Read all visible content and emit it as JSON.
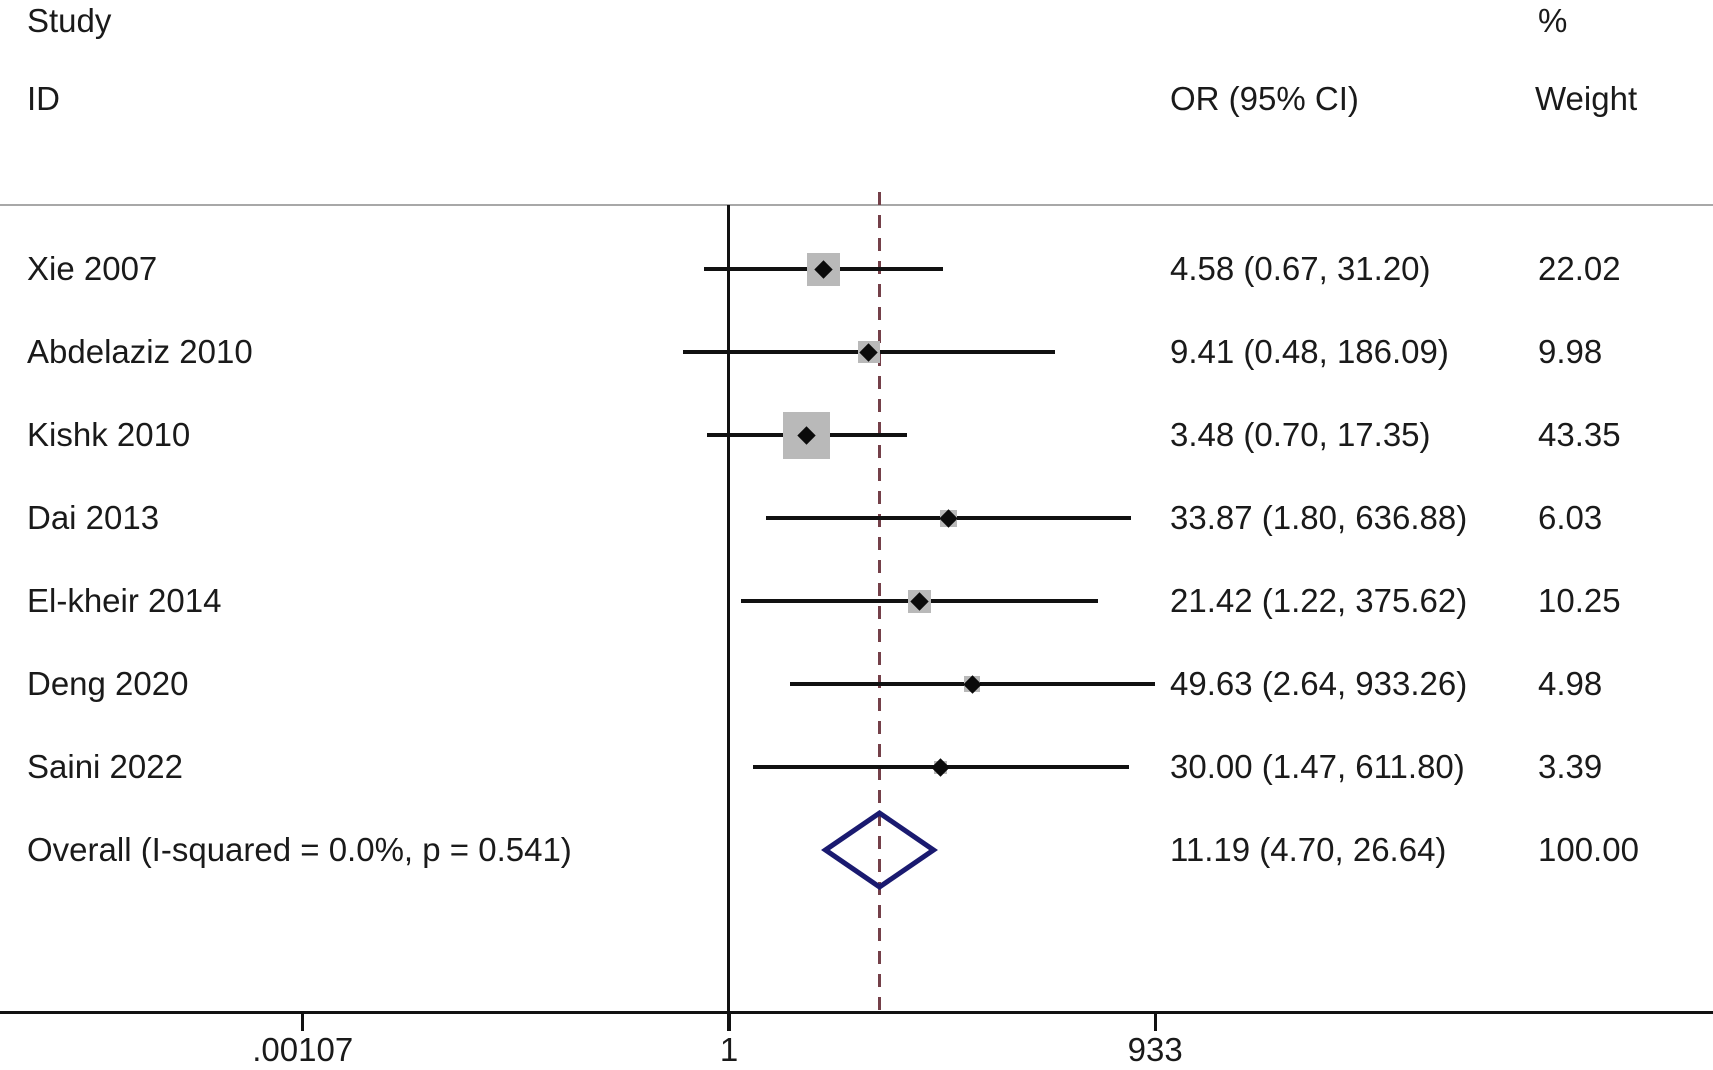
{
  "header": {
    "study_line1": "Study",
    "study_line2": "ID",
    "or_col": "OR (95% CI)",
    "weight_line1": "%",
    "weight_line2": "Weight"
  },
  "colors": {
    "box_fill": "#b9b9b9",
    "marker": "#0b0b0b",
    "ci_line": "#111111",
    "diamond_stroke": "#1a1a70",
    "pooled_dashed_line": "#744049",
    "top_rule": "#a8a8a8",
    "axis_line": "#111111",
    "text": "#1a1a1a"
  },
  "chart_data": {
    "type": "forest",
    "x_scale": "log",
    "x_axis_ticks": [
      {
        "label": ".00107",
        "value": 0.00107
      },
      {
        "label": "1",
        "value": 1
      },
      {
        "label": "933",
        "value": 933
      }
    ],
    "null_line_value": 1,
    "pooled_line_value": 11.19,
    "studies": [
      {
        "id": "Xie 2007",
        "or": 4.58,
        "ci_low": 0.67,
        "ci_high": 31.2,
        "or_label": "4.58 (0.67, 31.20)",
        "weight": 22.02,
        "weight_label": "22.02"
      },
      {
        "id": "Abdelaziz 2010",
        "or": 9.41,
        "ci_low": 0.48,
        "ci_high": 186.09,
        "or_label": "9.41 (0.48, 186.09)",
        "weight": 9.98,
        "weight_label": "9.98"
      },
      {
        "id": "Kishk 2010",
        "or": 3.48,
        "ci_low": 0.7,
        "ci_high": 17.35,
        "or_label": "3.48 (0.70, 17.35)",
        "weight": 43.35,
        "weight_label": "43.35"
      },
      {
        "id": "Dai 2013",
        "or": 33.87,
        "ci_low": 1.8,
        "ci_high": 636.88,
        "or_label": "33.87 (1.80, 636.88)",
        "weight": 6.03,
        "weight_label": "6.03"
      },
      {
        "id": "El-kheir 2014",
        "or": 21.42,
        "ci_low": 1.22,
        "ci_high": 375.62,
        "or_label": "21.42 (1.22, 375.62)",
        "weight": 10.25,
        "weight_label": "10.25"
      },
      {
        "id": "Deng 2020",
        "or": 49.63,
        "ci_low": 2.64,
        "ci_high": 933.26,
        "or_label": "49.63 (2.64, 933.26)",
        "weight": 4.98,
        "weight_label": "4.98"
      },
      {
        "id": "Saini 2022",
        "or": 30.0,
        "ci_low": 1.47,
        "ci_high": 611.8,
        "or_label": "30.00 (1.47, 611.80)",
        "weight": 3.39,
        "weight_label": "3.39"
      }
    ],
    "overall": {
      "id": "Overall  (I-squared = 0.0%, p = 0.541)",
      "or": 11.19,
      "ci_low": 4.7,
      "ci_high": 26.64,
      "or_label": "11.19 (4.70, 26.64)",
      "weight": 100.0,
      "weight_label": "100.00"
    }
  }
}
